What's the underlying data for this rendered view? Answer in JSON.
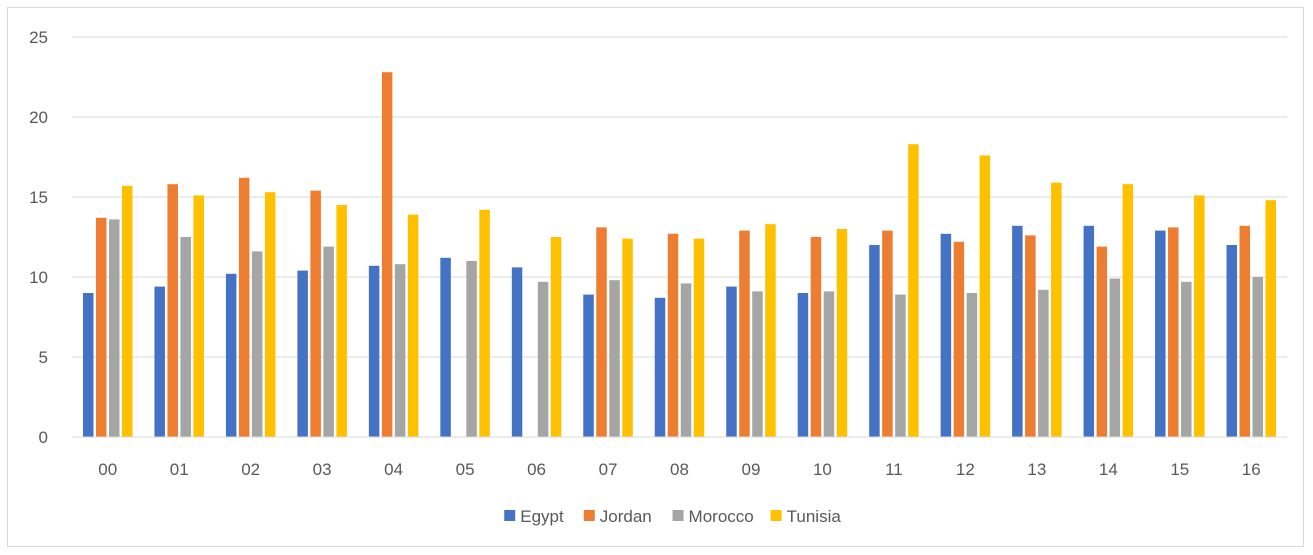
{
  "chart_data": {
    "type": "bar",
    "title": "",
    "xlabel": "",
    "ylabel": "",
    "categories": [
      "00",
      "01",
      "02",
      "03",
      "04",
      "05",
      "06",
      "07",
      "08",
      "09",
      "10",
      "11",
      "12",
      "13",
      "14",
      "15",
      "16"
    ],
    "ylim": [
      0,
      25
    ],
    "yticks": [
      0,
      5,
      10,
      15,
      20,
      25
    ],
    "grid": true,
    "legend_position": "bottom",
    "series": [
      {
        "name": "Egypt",
        "color": "#4472c4",
        "values": [
          9.0,
          9.4,
          10.2,
          10.4,
          10.7,
          11.2,
          10.6,
          8.9,
          8.7,
          9.4,
          9.0,
          12.0,
          12.7,
          13.2,
          13.2,
          12.9,
          12.0
        ]
      },
      {
        "name": "Jordan",
        "color": "#ed7d31",
        "values": [
          13.7,
          15.8,
          16.2,
          15.4,
          22.8,
          null,
          null,
          13.1,
          12.7,
          12.9,
          12.5,
          12.9,
          12.2,
          12.6,
          11.9,
          13.1,
          13.2
        ]
      },
      {
        "name": "Morocco",
        "color": "#a5a5a5",
        "values": [
          13.6,
          12.5,
          11.6,
          11.9,
          10.8,
          11.0,
          9.7,
          9.8,
          9.6,
          9.1,
          9.1,
          8.9,
          9.0,
          9.2,
          9.9,
          9.7,
          10.0
        ]
      },
      {
        "name": "Tunisia",
        "color": "#ffc000",
        "values": [
          15.7,
          15.1,
          15.3,
          14.5,
          13.9,
          14.2,
          12.5,
          12.4,
          12.4,
          13.3,
          13.0,
          18.3,
          17.6,
          15.9,
          15.8,
          15.1,
          14.8
        ]
      }
    ]
  }
}
